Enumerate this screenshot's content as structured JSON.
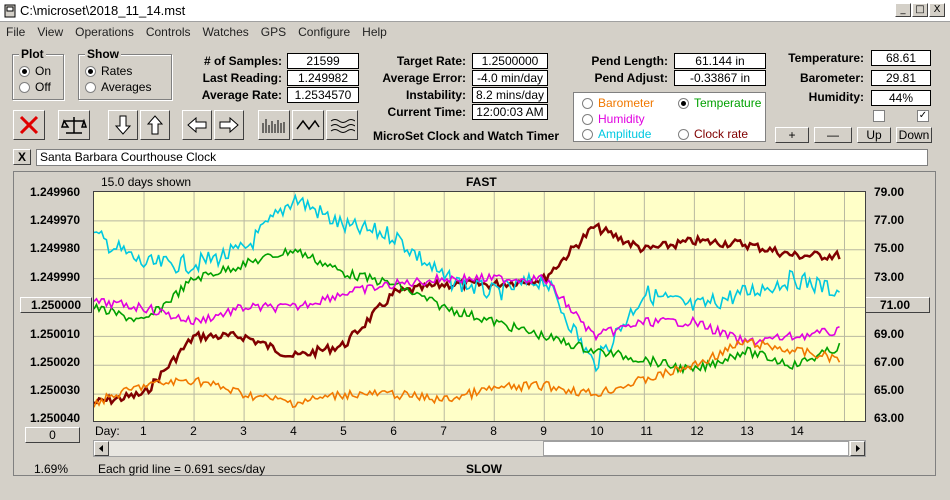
{
  "window": {
    "title": "C:\\microset\\2018_11_14.mst",
    "min": "_",
    "max": "□",
    "close": "X"
  },
  "menu": [
    "File",
    "View",
    "Operations",
    "Controls",
    "Watches",
    "GPS",
    "Configure",
    "Help"
  ],
  "plot_group": {
    "title": "Plot",
    "options": [
      "On",
      "Off"
    ],
    "selected": "On"
  },
  "show_group": {
    "title": "Show",
    "options": [
      "Rates",
      "Averages"
    ],
    "selected": "Rates"
  },
  "stats": {
    "samples_label": "# of Samples:",
    "samples": "21599",
    "last_label": "Last Reading:",
    "last": "1.249982",
    "avgrate_label": "Average Rate:",
    "avgrate": "1.2534570",
    "target_label": "Target Rate:",
    "target": "1.2500000",
    "avgerr_label": "Average Error:",
    "avgerr": "-4.0 min/day",
    "instab_label": "Instability:",
    "instab": "8.2 mins/day",
    "time_label": "Current Time:",
    "time": "12:00:03 AM",
    "pendlen_label": "Pend Length:",
    "pendlen": "61.144 in",
    "pendadj_label": "Pend Adjust:",
    "pendadj": "-0.33867 in",
    "temp_label": "Temperature:",
    "temp": "68.61",
    "baro_label": "Barometer:",
    "baro": "29.81",
    "hum_label": "Humidity:",
    "hum": "44%"
  },
  "app_caption": "MicroSet Clock and Watch Timer",
  "sensors": [
    {
      "label": "Barometer",
      "color": "#f07800",
      "selected": false
    },
    {
      "label": "Temperature",
      "color": "#00a000",
      "selected": true
    },
    {
      "label": "Humidity",
      "color": "#e000e0",
      "selected": false
    },
    {
      "label": "Clock rate",
      "color": "#800000",
      "selected": false
    },
    {
      "label": "Amplitude",
      "color": "#00c8e0",
      "selected": false
    }
  ],
  "sensor_buttons": {
    "plus": "+",
    "minus": "—",
    "up": "Up",
    "down": "Down"
  },
  "checks": {
    "first": "",
    "second": "✓"
  },
  "watch_name": "Santa Barbara Courthouse Clock",
  "watch_close": "X",
  "chart": {
    "days_shown": "15.0 days shown",
    "top": "FAST",
    "bottom": "SLOW",
    "left_ticks": [
      "1.249960",
      "1.249970",
      "1.249980",
      "1.249990",
      "1.250000",
      "1.250010",
      "1.250020",
      "1.250030",
      "1.250040"
    ],
    "right_ticks": [
      "79.00",
      "77.00",
      "75.00",
      "73.00",
      "71.00",
      "69.00",
      "67.00",
      "65.00",
      "63.00"
    ],
    "day_label": "Day:",
    "days": [
      "1",
      "2",
      "3",
      "4",
      "5",
      "6",
      "7",
      "8",
      "9",
      "10",
      "11",
      "12",
      "13",
      "14"
    ],
    "zero_btn": "0",
    "percent": "1.69%",
    "grid_note": "Each grid line = 0.691 secs/day"
  },
  "chart_data": {
    "type": "line",
    "x": [
      0,
      1,
      2,
      3,
      4,
      5,
      6,
      7,
      8,
      9,
      10,
      11,
      12,
      13,
      14,
      15
    ],
    "ylim_left": [
      1.25004,
      1.24996
    ],
    "ylim_right": [
      63,
      79
    ],
    "series": [
      {
        "color": "#800000",
        "values": [
          1.250033,
          1.25003,
          1.25001,
          1.25001,
          1.250017,
          1.250013,
          1.249995,
          1.249992,
          1.249992,
          1.24999,
          1.249972,
          1.24998,
          1.249977,
          1.249978,
          1.249982,
          1.249982
        ]
      },
      {
        "color": "#00c8e0",
        "values": [
          1.249975,
          1.249985,
          1.249985,
          1.24998,
          1.249962,
          1.249972,
          1.249975,
          1.24999,
          1.249995,
          1.24999,
          1.25002,
          1.249995,
          1.25,
          1.249995,
          1.24999,
          1.249995
        ]
      },
      {
        "color": "#00a000",
        "values": [
          1.25,
          1.250005,
          1.24999,
          1.249985,
          1.24998,
          1.249988,
          1.249992,
          1.25,
          1.250005,
          1.25001,
          1.250015,
          1.250018,
          1.250022,
          1.250015,
          1.25002,
          1.250013
        ]
      },
      {
        "color": "#e000e0",
        "values": [
          1.249998,
          1.25,
          1.250005,
          1.25,
          1.25,
          1.249995,
          1.249992,
          1.24999,
          1.24999,
          1.24999,
          1.25001,
          1.250005,
          1.250005,
          1.250012,
          1.25001,
          1.250008
        ]
      },
      {
        "color": "#f07800",
        "values": [
          1.250033,
          1.250027,
          1.250025,
          1.25003,
          1.250033,
          1.25003,
          1.25003,
          1.250032,
          1.250028,
          1.250027,
          1.25003,
          1.250025,
          1.25002,
          1.250012,
          1.250015,
          1.250018
        ]
      }
    ]
  }
}
